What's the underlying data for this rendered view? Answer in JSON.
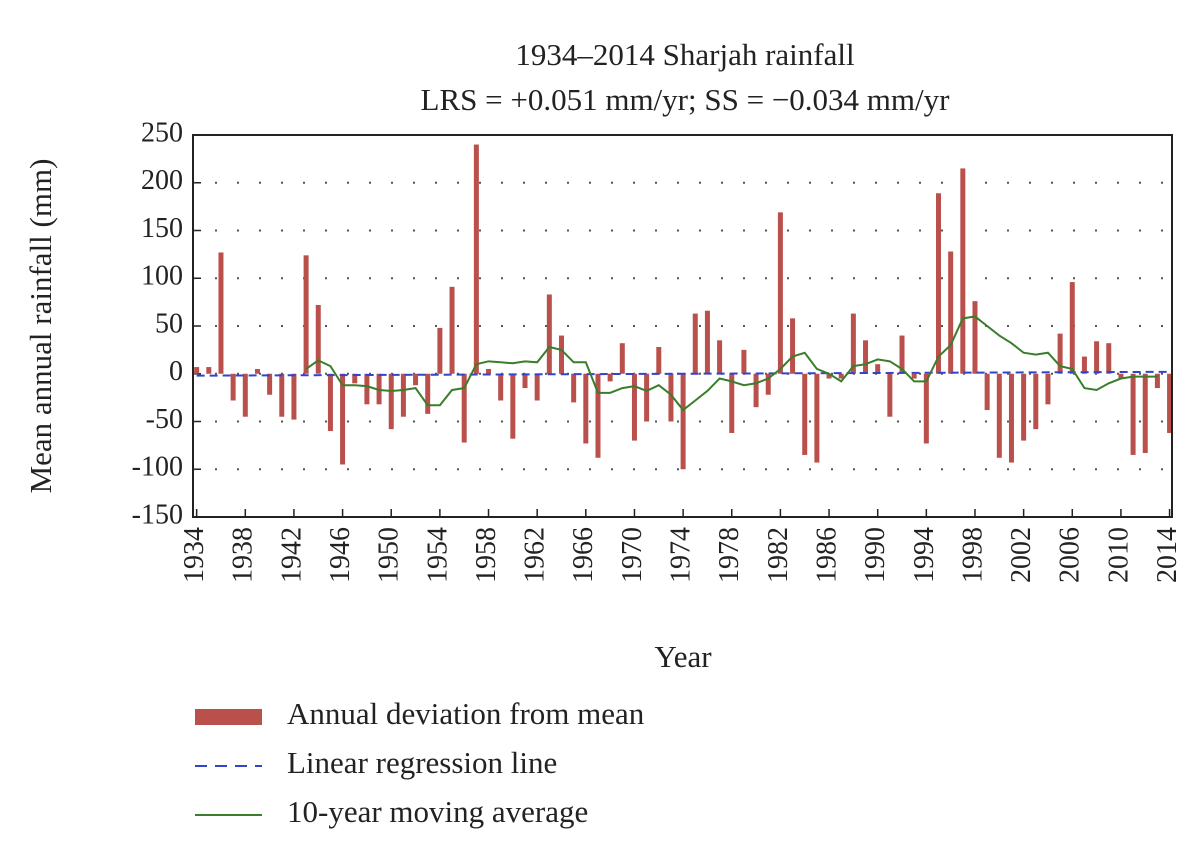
{
  "chart_data": {
    "type": "bar",
    "title": "1934–2014 Sharjah rainfall",
    "subtitle": "LRS = +0.051 mm/yr; SS = −0.034 mm/yr",
    "x_label": "Year",
    "y_label": "Mean annual rainfall (mm)",
    "x": [
      1934,
      1935,
      1936,
      1937,
      1938,
      1939,
      1940,
      1941,
      1942,
      1943,
      1944,
      1945,
      1946,
      1947,
      1948,
      1949,
      1950,
      1951,
      1952,
      1953,
      1954,
      1955,
      1956,
      1957,
      1958,
      1959,
      1960,
      1961,
      1962,
      1963,
      1964,
      1965,
      1966,
      1967,
      1968,
      1969,
      1970,
      1971,
      1972,
      1973,
      1974,
      1975,
      1976,
      1977,
      1978,
      1979,
      1980,
      1981,
      1982,
      1983,
      1984,
      1985,
      1986,
      1987,
      1988,
      1989,
      1990,
      1991,
      1992,
      1993,
      1994,
      1995,
      1996,
      1997,
      1998,
      1999,
      2000,
      2001,
      2002,
      2003,
      2004,
      2005,
      2006,
      2007,
      2008,
      2009,
      2010,
      2011,
      2012,
      2013,
      2014
    ],
    "series": [
      {
        "name": "Annual deviation from mean",
        "type": "bar",
        "color": "#b9504c",
        "values": [
          7,
          7,
          127,
          -28,
          -45,
          5,
          -22,
          -45,
          -48,
          124,
          72,
          -60,
          -95,
          -10,
          -32,
          -32,
          -58,
          -45,
          -12,
          -42,
          48,
          91,
          -72,
          240,
          5,
          -28,
          -68,
          -15,
          -28,
          83,
          40,
          -30,
          -73,
          -88,
          -8,
          32,
          -70,
          -50,
          28,
          -50,
          -100,
          63,
          66,
          35,
          -62,
          25,
          -35,
          -22,
          169,
          58,
          -85,
          -93,
          -5,
          -5,
          63,
          35,
          10,
          -45,
          40,
          -5,
          -73,
          189,
          128,
          215,
          76,
          -38,
          -88,
          -93,
          -70,
          -58,
          -32,
          42,
          96,
          18,
          34,
          32,
          -5,
          -85,
          -83,
          -15,
          -62
        ]
      },
      {
        "name": "Linear regression line",
        "type": "dashed-line",
        "color": "#3344cc",
        "x": [
          1934,
          2014
        ],
        "values": [
          -2,
          2
        ]
      },
      {
        "name": "10-year moving average",
        "type": "line",
        "color": "#3a7d2a",
        "values": [
          null,
          null,
          null,
          null,
          null,
          null,
          null,
          null,
          null,
          5,
          14,
          8,
          -12,
          -12,
          -13,
          -17,
          -18,
          -17,
          -15,
          -33,
          -33,
          -17,
          -15,
          10,
          13,
          12,
          11,
          13,
          12,
          28,
          25,
          12,
          12,
          -20,
          -20,
          -15,
          -13,
          -18,
          -12,
          -22,
          -38,
          -28,
          -18,
          -5,
          -8,
          -12,
          -10,
          -5,
          5,
          18,
          22,
          5,
          0,
          -8,
          8,
          10,
          15,
          13,
          5,
          -8,
          -8,
          18,
          30,
          58,
          60,
          50,
          40,
          32,
          22,
          20,
          22,
          8,
          5,
          -15,
          -17,
          -10,
          -5,
          -3,
          -3,
          -3,
          null
        ]
      }
    ],
    "xlim": [
      1933.7,
      2014.2
    ],
    "xticks": [
      1934,
      1938,
      1942,
      1946,
      1950,
      1954,
      1958,
      1962,
      1966,
      1970,
      1974,
      1978,
      1982,
      1986,
      1990,
      1994,
      1998,
      2002,
      2006,
      2010,
      2014
    ],
    "ylim": [
      -150,
      250
    ],
    "yticks": [
      -150,
      -100,
      -50,
      0,
      50,
      100,
      150,
      200,
      250
    ],
    "grid": true
  }
}
